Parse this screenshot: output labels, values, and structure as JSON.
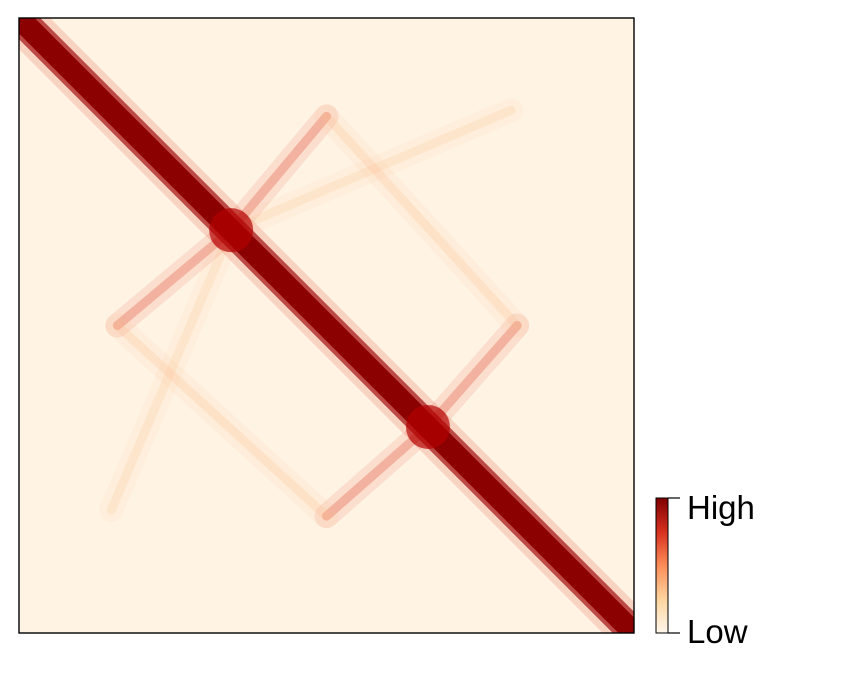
{
  "chart_data": {
    "type": "heatmap",
    "colormap": "OrRd",
    "colorbar": {
      "high_label": "High",
      "low_label": "Low",
      "high_color": "#7f0000",
      "low_color": "#fff7ec"
    },
    "axes": {
      "ticks": false,
      "grid": false,
      "frame": true
    },
    "features": {
      "diagonal": {
        "from": [
          0,
          0
        ],
        "to": [
          1,
          1
        ],
        "intensity": 1.0
      },
      "anchors": [
        {
          "x": 0.345,
          "y": 0.345,
          "intensity": 0.9
        },
        {
          "x": 0.665,
          "y": 0.665,
          "intensity": 0.9
        }
      ],
      "stripes": [
        {
          "from": [
            0.345,
            0.345
          ],
          "to": [
            0.16,
            0.5
          ],
          "intensity": 0.55
        },
        {
          "from": [
            0.345,
            0.345
          ],
          "to": [
            0.5,
            0.16
          ],
          "intensity": 0.55
        },
        {
          "from": [
            0.665,
            0.665
          ],
          "to": [
            0.5,
            0.81
          ],
          "intensity": 0.55
        },
        {
          "from": [
            0.665,
            0.665
          ],
          "to": [
            0.81,
            0.5
          ],
          "intensity": 0.55
        },
        {
          "from": [
            0.5,
            0.16
          ],
          "to": [
            0.81,
            0.5
          ],
          "intensity": 0.3
        },
        {
          "from": [
            0.16,
            0.5
          ],
          "to": [
            0.5,
            0.81
          ],
          "intensity": 0.3
        },
        {
          "from": [
            0.345,
            0.345
          ],
          "to": [
            0.15,
            0.8
          ],
          "intensity": 0.2
        },
        {
          "from": [
            0.345,
            0.345
          ],
          "to": [
            0.8,
            0.15
          ],
          "intensity": 0.2
        }
      ]
    }
  }
}
